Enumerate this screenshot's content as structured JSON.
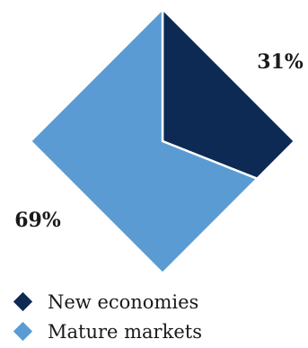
{
  "chart_data": {
    "type": "pie",
    "shape": "diamond",
    "categories": [
      "New economies",
      "Mature markets"
    ],
    "values": [
      31,
      69
    ],
    "value_labels": [
      "31%",
      "69%"
    ],
    "colors": [
      "#0d2a54",
      "#5a9bd3"
    ],
    "title": "",
    "legend_position": "bottom-left"
  }
}
